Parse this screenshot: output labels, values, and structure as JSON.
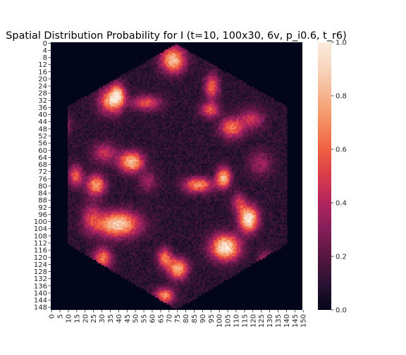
{
  "chart_data": {
    "type": "heatmap",
    "title": "Spatial Distribution Probability for I (t=10, 100x30, 6v, p_i0.6, t_r6)",
    "xlabel": "",
    "ylabel": "",
    "grid": false,
    "colormap": "rocket",
    "colormap_stops": [
      "#03051a",
      "#2b1234",
      "#57163f",
      "#841e5a",
      "#b1245e",
      "#d83b4a",
      "#f06043",
      "#f58c5f",
      "#f5b38c",
      "#f7d4bc",
      "#faebdd"
    ],
    "nan_color": "#ffffff",
    "grid_shape": {
      "rows": 150,
      "cols": 150
    },
    "hexagon_extent": {
      "x": [
        10,
        141
      ],
      "rows_full_width": [
        36,
        113
      ],
      "top_vertex": {
        "col": 75,
        "row": 1
      },
      "bottom_vertex": {
        "col": 75,
        "row": 150
      }
    },
    "x_tick_labels": [
      "0",
      "5",
      "10",
      "15",
      "20",
      "25",
      "30",
      "35",
      "40",
      "45",
      "50",
      "55",
      "60",
      "65",
      "70",
      "75",
      "80",
      "85",
      "90",
      "95",
      "100",
      "105",
      "110",
      "115",
      "120",
      "125",
      "130",
      "135",
      "140",
      "145",
      "150"
    ],
    "y_tick_labels": [
      "0",
      "4",
      "8",
      "12",
      "16",
      "20",
      "24",
      "28",
      "32",
      "36",
      "40",
      "44",
      "48",
      "52",
      "56",
      "60",
      "64",
      "68",
      "72",
      "76",
      "80",
      "84",
      "88",
      "92",
      "96",
      "100",
      "104",
      "108",
      "112",
      "116",
      "120",
      "124",
      "128",
      "132",
      "136",
      "140",
      "144",
      "148"
    ],
    "colorbar": {
      "range": [
        0.0,
        1.0
      ],
      "tick_labels": [
        "0.0",
        "0.2",
        "0.4",
        "0.6",
        "0.8",
        "1.0"
      ]
    },
    "background_level": 0.1,
    "hotspots": [
      {
        "col": 73,
        "row": 10,
        "peak": 0.75,
        "sigma_col": 5,
        "sigma_row": 5
      },
      {
        "col": 36,
        "row": 33,
        "peak": 0.65,
        "sigma_col": 5,
        "sigma_row": 5
      },
      {
        "col": 40,
        "row": 29,
        "peak": 0.55,
        "sigma_col": 3,
        "sigma_row": 4
      },
      {
        "col": 57,
        "row": 34,
        "peak": 0.45,
        "sigma_col": 6,
        "sigma_row": 3
      },
      {
        "col": 96,
        "row": 25,
        "peak": 0.5,
        "sigma_col": 3,
        "sigma_row": 5
      },
      {
        "col": 95,
        "row": 38,
        "peak": 0.45,
        "sigma_col": 4,
        "sigma_row": 3
      },
      {
        "col": 108,
        "row": 48,
        "peak": 0.55,
        "sigma_col": 5,
        "sigma_row": 4
      },
      {
        "col": 120,
        "row": 43,
        "peak": 0.35,
        "sigma_col": 5,
        "sigma_row": 4
      },
      {
        "col": 32,
        "row": 62,
        "peak": 0.35,
        "sigma_col": 5,
        "sigma_row": 4
      },
      {
        "col": 48,
        "row": 67,
        "peak": 0.75,
        "sigma_col": 5,
        "sigma_row": 4
      },
      {
        "col": 15,
        "row": 75,
        "peak": 0.5,
        "sigma_col": 3,
        "sigma_row": 4
      },
      {
        "col": 27,
        "row": 80,
        "peak": 0.65,
        "sigma_col": 4,
        "sigma_row": 4
      },
      {
        "col": 88,
        "row": 80,
        "peak": 0.6,
        "sigma_col": 6,
        "sigma_row": 3
      },
      {
        "col": 103,
        "row": 76,
        "peak": 0.75,
        "sigma_col": 3,
        "sigma_row": 4
      },
      {
        "col": 40,
        "row": 102,
        "peak": 0.8,
        "sigma_col": 9,
        "sigma_row": 5
      },
      {
        "col": 24,
        "row": 98,
        "peak": 0.3,
        "sigma_col": 4,
        "sigma_row": 6
      },
      {
        "col": 118,
        "row": 99,
        "peak": 0.9,
        "sigma_col": 4,
        "sigma_row": 5
      },
      {
        "col": 104,
        "row": 115,
        "peak": 0.9,
        "sigma_col": 6,
        "sigma_row": 5
      },
      {
        "col": 112,
        "row": 90,
        "peak": 0.35,
        "sigma_col": 3,
        "sigma_row": 4
      },
      {
        "col": 31,
        "row": 121,
        "peak": 0.55,
        "sigma_col": 4,
        "sigma_row": 4
      },
      {
        "col": 68,
        "row": 121,
        "peak": 0.55,
        "sigma_col": 3,
        "sigma_row": 4
      },
      {
        "col": 76,
        "row": 127,
        "peak": 0.7,
        "sigma_col": 4,
        "sigma_row": 4
      },
      {
        "col": 68,
        "row": 142,
        "peak": 0.6,
        "sigma_col": 4,
        "sigma_row": 3
      },
      {
        "col": 8,
        "row": 47,
        "peak": 0.25,
        "sigma_col": 3,
        "sigma_row": 4
      },
      {
        "col": 128,
        "row": 123,
        "peak": 0.35,
        "sigma_col": 3,
        "sigma_row": 4
      },
      {
        "col": 58,
        "row": 78,
        "peak": 0.25,
        "sigma_col": 4,
        "sigma_row": 4
      },
      {
        "col": 125,
        "row": 68,
        "peak": 0.25,
        "sigma_col": 5,
        "sigma_row": 5
      }
    ]
  }
}
